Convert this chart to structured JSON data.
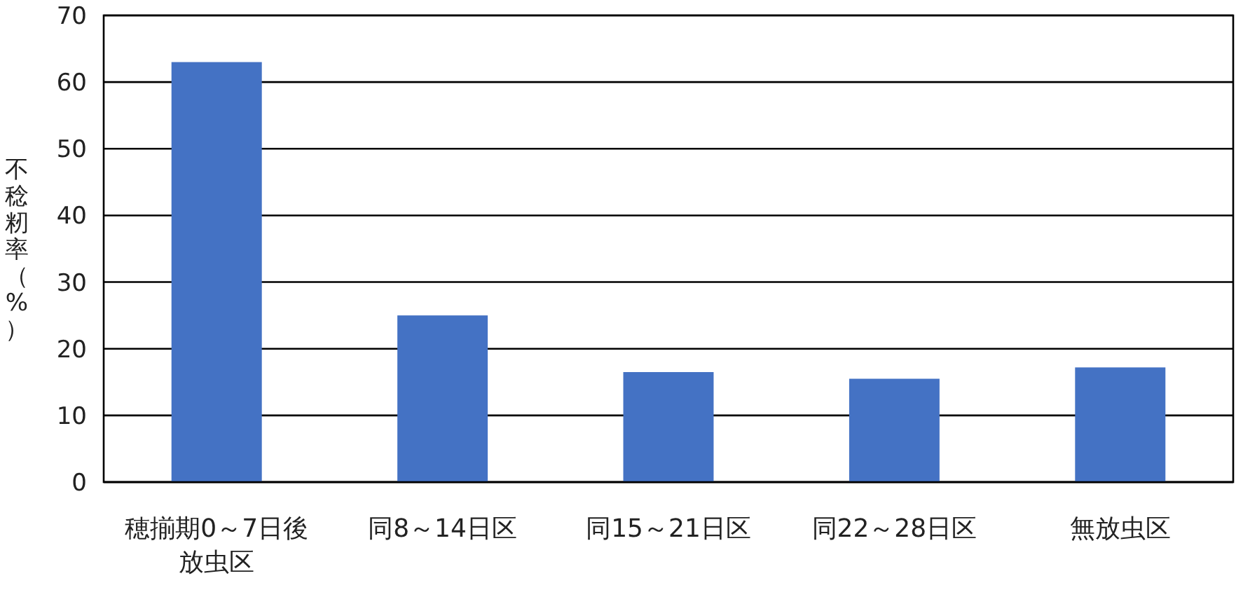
{
  "chart_data": {
    "type": "bar",
    "ylabel": "不稔籾率（%）",
    "categories": [
      "穂揃期0～7日後放虫区",
      "同8～14日区",
      "同15～21日区",
      "同22～28日区",
      "無放虫区"
    ],
    "values": [
      63,
      25,
      16.5,
      15.5,
      17.2
    ],
    "color": "#4472c4",
    "ylim": [
      0,
      70
    ],
    "yticks": [
      0,
      10,
      20,
      30,
      40,
      50,
      60,
      70
    ],
    "grid": "y"
  }
}
